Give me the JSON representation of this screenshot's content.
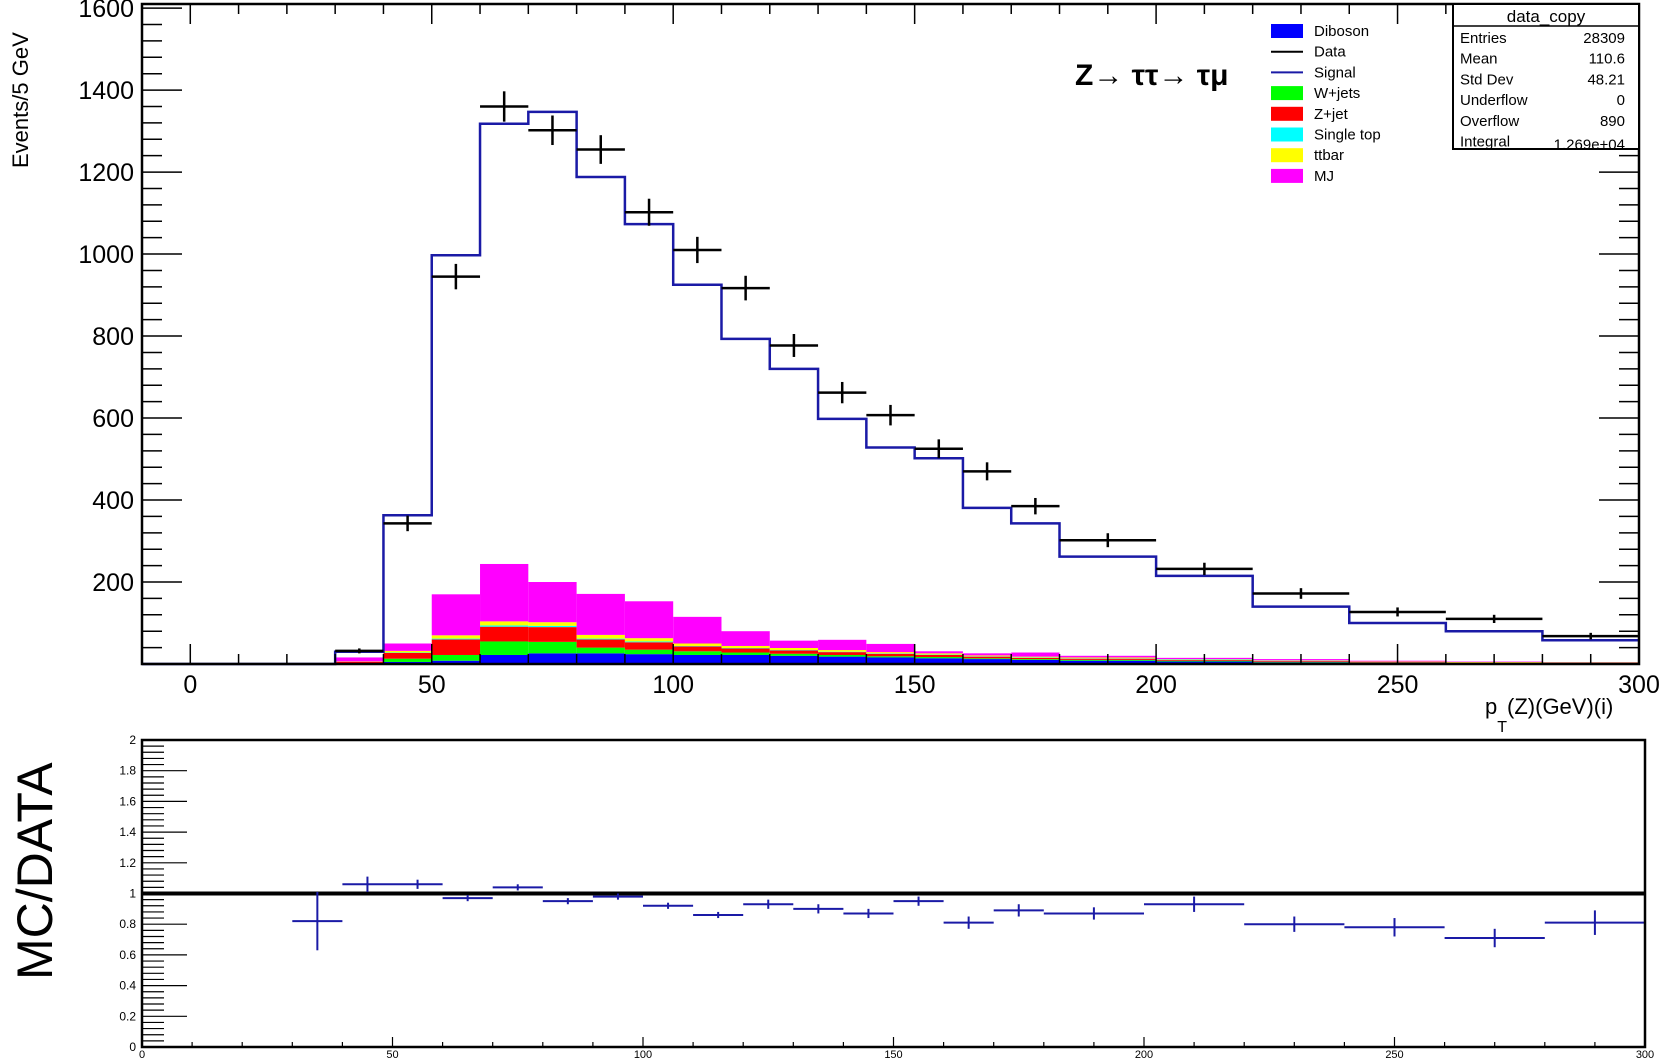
{
  "chart_data": [
    {
      "type": "histogram",
      "ylabel": "Events/5 GeV",
      "xlabel_main": "p",
      "xlabel_sub": "T",
      "xlabel_rest": "(Z)(GeV)(i)",
      "annotation": "Z→ ττ→ τμ",
      "xlim": [
        -10,
        300
      ],
      "ylim": [
        0,
        1610
      ],
      "x_ticks": [
        0,
        50,
        100,
        150,
        200,
        250,
        300
      ],
      "y_ticks": [
        200,
        400,
        600,
        800,
        1000,
        1200,
        1400,
        1600
      ],
      "bin_edges": [
        -10,
        30,
        40,
        50,
        60,
        70,
        80,
        90,
        100,
        110,
        120,
        130,
        140,
        150,
        160,
        170,
        180,
        200,
        220,
        240,
        260,
        280,
        300
      ],
      "signal": {
        "name": "Signal",
        "color": "#1a1aa6",
        "values": [
          0,
          30,
          363,
          997,
          1318,
          1347,
          1188,
          1073,
          925,
          793,
          720,
          598,
          528,
          502,
          381,
          343,
          262,
          215,
          140,
          100,
          80,
          58
        ]
      },
      "data_points": {
        "name": "Data",
        "color": "#000000",
        "x": [
          35,
          45,
          55,
          65,
          75,
          85,
          95,
          105,
          115,
          125,
          135,
          145,
          155,
          165,
          175,
          190,
          210,
          230,
          250,
          270,
          290
        ],
        "xerr": [
          5,
          5,
          5,
          5,
          5,
          5,
          5,
          5,
          5,
          5,
          5,
          5,
          5,
          5,
          5,
          10,
          10,
          10,
          10,
          10,
          10
        ],
        "y": [
          32,
          343,
          945,
          1360,
          1302,
          1255,
          1102,
          1010,
          917,
          777,
          662,
          607,
          525,
          470,
          385,
          302,
          232,
          172,
          127,
          110,
          68
        ],
        "yerr": [
          6,
          19,
          31,
          37,
          36,
          35,
          33,
          32,
          30,
          28,
          26,
          25,
          23,
          22,
          20,
          17,
          15,
          13,
          11,
          10,
          8
        ]
      },
      "stack": [
        {
          "name": "Diboson",
          "color": "#0000ff",
          "values": [
            0,
            0,
            5,
            8,
            22,
            26,
            26,
            24,
            22,
            22,
            20,
            18,
            16,
            14,
            12,
            10,
            8,
            6,
            4,
            3,
            2,
            2
          ]
        },
        {
          "name": "W+jets",
          "color": "#00ff00",
          "values": [
            0,
            2,
            8,
            14,
            33,
            28,
            14,
            11,
            9,
            6,
            5,
            4,
            3,
            3,
            2,
            2,
            2,
            2,
            1,
            1,
            1,
            1
          ]
        },
        {
          "name": "Z+jet",
          "color": "#ff0000",
          "values": [
            0,
            3,
            14,
            38,
            36,
            36,
            20,
            18,
            12,
            10,
            8,
            7,
            6,
            5,
            4,
            3,
            3,
            2,
            2,
            1,
            1,
            1
          ]
        },
        {
          "name": "Single top",
          "color": "#00ffff",
          "values": [
            0,
            0,
            1,
            2,
            3,
            3,
            2,
            2,
            1,
            1,
            1,
            1,
            1,
            1,
            1,
            1,
            1,
            1,
            1,
            0,
            0,
            0
          ]
        },
        {
          "name": "ttbar",
          "color": "#ffff00",
          "values": [
            0,
            1,
            4,
            8,
            10,
            9,
            9,
            8,
            6,
            5,
            5,
            4,
            3,
            3,
            2,
            2,
            2,
            1,
            1,
            1,
            1,
            0
          ]
        },
        {
          "name": "MJ",
          "color": "#ff00ff",
          "values": [
            0,
            10,
            18,
            100,
            140,
            98,
            100,
            90,
            65,
            36,
            18,
            25,
            20,
            5,
            5,
            10,
            4,
            3,
            3,
            2,
            1,
            0
          ]
        }
      ],
      "legend": [
        "Diboson",
        "Data",
        "Signal",
        "W+jets",
        "Z+jet",
        "Single top",
        "ttbar",
        "MJ"
      ],
      "stats": {
        "title": "data_copy",
        "rows": [
          {
            "label": "Entries",
            "value": "28309"
          },
          {
            "label": "Mean",
            "value": "110.6"
          },
          {
            "label": "Std Dev",
            "value": "48.21"
          },
          {
            "label": "Underflow",
            "value": "0"
          },
          {
            "label": "Overflow",
            "value": "890"
          },
          {
            "label": "Integral",
            "value": "1.269e+04"
          }
        ]
      }
    },
    {
      "type": "scatter",
      "ylabel": "MC/DATA",
      "xlim": [
        0,
        300
      ],
      "ylim": [
        0,
        2
      ],
      "x_ticks": [
        0,
        50,
        100,
        150,
        200,
        250,
        300
      ],
      "y_ticks": [
        0,
        0.2,
        0.4,
        0.6,
        0.8,
        1,
        1.2,
        1.4,
        1.6,
        1.8,
        2
      ],
      "y_tick_labels": [
        "0",
        "0.2",
        "0.4",
        "0.6",
        "0.8",
        "1",
        "1.2",
        "1.4",
        "1.6",
        "1.8",
        "2"
      ],
      "reference_line": 1,
      "color": "#1a1aa6",
      "x": [
        35,
        45,
        55,
        65,
        75,
        85,
        95,
        105,
        115,
        125,
        135,
        145,
        155,
        165,
        175,
        190,
        210,
        230,
        250,
        270,
        290
      ],
      "xerr": [
        5,
        5,
        5,
        5,
        5,
        5,
        5,
        5,
        5,
        5,
        5,
        5,
        5,
        5,
        5,
        10,
        10,
        10,
        10,
        10,
        10
      ],
      "y": [
        0.82,
        1.06,
        1.06,
        0.97,
        1.04,
        0.95,
        0.98,
        0.92,
        0.86,
        0.93,
        0.9,
        0.87,
        0.95,
        0.81,
        0.89,
        0.87,
        0.93,
        0.8,
        0.78,
        0.71,
        0.81
      ],
      "yerr": [
        0.19,
        0.05,
        0.03,
        0.02,
        0.02,
        0.02,
        0.02,
        0.02,
        0.02,
        0.03,
        0.03,
        0.03,
        0.03,
        0.04,
        0.04,
        0.04,
        0.05,
        0.05,
        0.06,
        0.06,
        0.08
      ]
    }
  ]
}
